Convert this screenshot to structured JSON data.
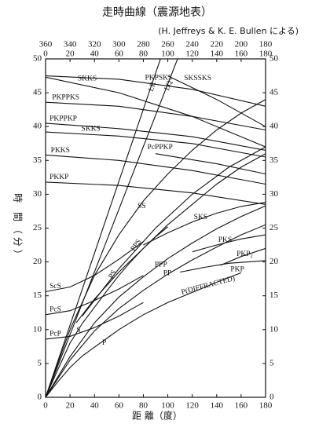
{
  "chart_data": {
    "type": "line",
    "title": "走時曲線（震源地表）",
    "subtitle": "(H. Jeffreys & K. E. Bullen による)",
    "xlabel": "距 離（度）",
    "ylabel": "時 間（分）",
    "xlim": [
      0,
      180
    ],
    "ylim": [
      0,
      50
    ],
    "xticks": [
      0,
      20,
      40,
      60,
      80,
      100,
      120,
      140,
      160,
      180
    ],
    "x2ticks": [
      {
        "value": 0,
        "label": "360"
      },
      {
        "value": 20,
        "label": "340"
      },
      {
        "value": 40,
        "label": "320"
      },
      {
        "value": 60,
        "label": "300"
      },
      {
        "value": 80,
        "label": "280"
      },
      {
        "value": 100,
        "label": "260"
      },
      {
        "value": 120,
        "label": "240"
      },
      {
        "value": 140,
        "label": "220"
      },
      {
        "value": 160,
        "label": "200"
      },
      {
        "value": 180,
        "label": "180"
      }
    ],
    "yticks": [
      0,
      5,
      10,
      15,
      20,
      25,
      30,
      35,
      40,
      45,
      50
    ],
    "color": "#111111",
    "series": [
      {
        "name": "P",
        "x": [
          0,
          10,
          20,
          30,
          40,
          50,
          60,
          70,
          80,
          90,
          100
        ],
        "values": [
          0,
          2.3,
          4.4,
          6.1,
          7.4,
          8.7,
          10,
          11.1,
          12.2,
          13.1,
          14
        ]
      },
      {
        "name": "P(DIFFRACTED)",
        "x": [
          100,
          120,
          140,
          160
        ],
        "values": [
          14,
          15.5,
          17,
          18.4
        ]
      },
      {
        "name": "PKP",
        "x": [
          110,
          130,
          150,
          180
        ],
        "values": [
          18.5,
          19.2,
          19.8,
          20.2
        ]
      },
      {
        "name": "PKP₂",
        "x": [
          143,
          160,
          180
        ],
        "values": [
          19.5,
          20.8,
          22
        ]
      },
      {
        "name": "PKS",
        "x": [
          120,
          140,
          160,
          180
        ],
        "values": [
          21.5,
          22.5,
          23.4,
          24
        ]
      },
      {
        "name": "PP",
        "x": [
          0,
          20,
          40,
          60,
          80,
          100,
          120,
          140,
          160,
          180
        ],
        "values": [
          0,
          5.5,
          9.8,
          13.1,
          15.8,
          18.2,
          20.3,
          22.2,
          24,
          25.5
        ]
      },
      {
        "name": "PPP",
        "x": [
          0,
          20,
          40,
          60,
          80,
          100,
          120,
          140,
          160,
          180
        ],
        "values": [
          0,
          6,
          11,
          14.8,
          17.8,
          20.5,
          22.8,
          24.9,
          26.7,
          28.3
        ]
      },
      {
        "name": "S",
        "x": [
          0,
          10,
          20,
          30,
          40,
          50,
          60,
          70,
          80,
          90,
          100
        ],
        "values": [
          0,
          4.1,
          8,
          10.9,
          13.3,
          15.7,
          18,
          20.1,
          22,
          23.7,
          25.2
        ]
      },
      {
        "name": "SKS",
        "x": [
          80,
          100,
          120,
          140,
          160,
          180
        ],
        "values": [
          22.5,
          24.3,
          25.9,
          27.2,
          28.2,
          28.8
        ]
      },
      {
        "name": "SS",
        "x": [
          0,
          20,
          40,
          60,
          80,
          100,
          120,
          140,
          160,
          180
        ],
        "values": [
          0,
          10,
          18,
          24,
          29,
          33,
          36.5,
          39.5,
          42,
          44
        ]
      },
      {
        "name": "PS",
        "x": [
          25,
          40,
          60,
          80,
          100,
          120,
          140,
          160,
          180
        ],
        "values": [
          11,
          14.5,
          18.5,
          22,
          25.5,
          28.5,
          31.5,
          34,
          36
        ]
      },
      {
        "name": "PPS",
        "x": [
          30,
          60,
          90,
          120,
          150,
          180
        ],
        "values": [
          12,
          19,
          25,
          30,
          34,
          37
        ]
      },
      {
        "name": "PcP",
        "x": [
          0,
          20,
          40,
          60,
          80
        ],
        "values": [
          8.6,
          9,
          10.3,
          12,
          14
        ]
      },
      {
        "name": "PcS",
        "x": [
          0,
          20,
          40,
          60,
          80
        ],
        "values": [
          12.2,
          12.8,
          14.3,
          16,
          18
        ]
      },
      {
        "name": "ScS",
        "x": [
          0,
          20,
          40,
          60,
          80
        ],
        "values": [
          15.6,
          16.3,
          18,
          20.4,
          23
        ]
      },
      {
        "name": "LR",
        "x": [
          0,
          94
        ],
        "values": [
          0,
          50
        ]
      },
      {
        "name": "LQ",
        "x": [
          0,
          108
        ],
        "values": [
          0,
          50
        ]
      },
      {
        "name": "PKKP",
        "x": [
          0,
          60,
          120,
          180
        ],
        "values": [
          31.8,
          31.3,
          30.2,
          28.5
        ]
      },
      {
        "name": "PKKS",
        "x": [
          0,
          60,
          120,
          180
        ],
        "values": [
          35.8,
          35,
          33.5,
          31.5
        ]
      },
      {
        "name": "SKKS",
        "x": [
          0,
          60,
          120,
          180
        ],
        "values": [
          39.2,
          38.6,
          37.5,
          35.5
        ]
      },
      {
        "name": "PKPPKP",
        "x": [
          0,
          60,
          120,
          180
        ],
        "values": [
          40.5,
          39.7,
          38.5,
          36.5
        ]
      },
      {
        "name": "PKPPKS",
        "x": [
          0,
          60,
          120,
          180
        ],
        "values": [
          43.6,
          43,
          41.5,
          39.5
        ]
      },
      {
        "name": "SKKS",
        "x": [
          0,
          60,
          120,
          180
        ],
        "values": [
          47.3,
          45,
          41.5,
          37
        ]
      },
      {
        "name": "PKPSKS",
        "x": [
          0,
          60,
          120,
          180
        ],
        "values": [
          47.5,
          47,
          45.5,
          43
        ]
      },
      {
        "name": "PcPPKP",
        "x": [
          90,
          140,
          180
        ],
        "values": [
          36,
          34.5,
          33
        ]
      },
      {
        "name": "SKSSKS",
        "x": [
          100,
          140,
          180
        ],
        "values": [
          47.5,
          44,
          40
        ]
      }
    ]
  }
}
